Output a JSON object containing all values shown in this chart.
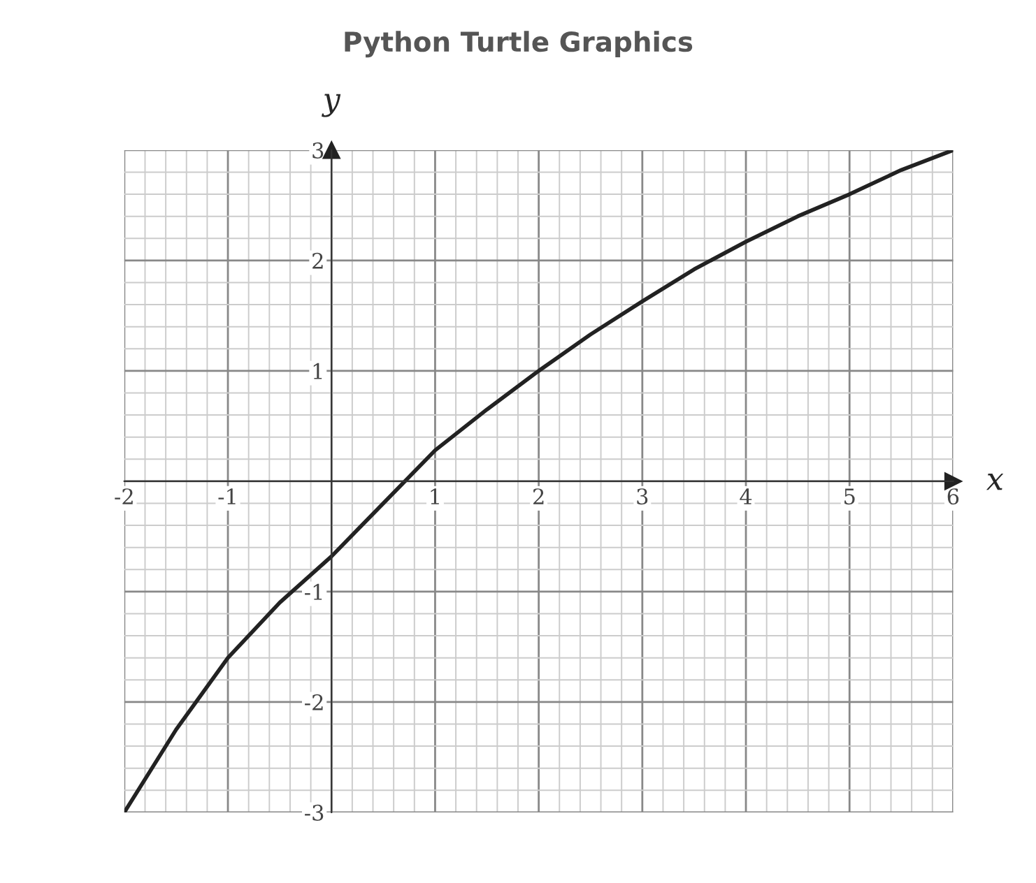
{
  "chart_data": {
    "type": "line",
    "title": "Python Turtle Graphics",
    "xlabel": "x",
    "ylabel": "y",
    "x": [
      -2,
      -1.5,
      -1,
      -0.5,
      0,
      0.5,
      1,
      1.5,
      2,
      2.5,
      3,
      3.5,
      4,
      4.5,
      5,
      5.5,
      6
    ],
    "series": [
      {
        "color": "#222222",
        "values": [
          -3,
          -2.25,
          -1.6,
          -1.1,
          -0.68,
          -0.2,
          0.28,
          0.65,
          1.0,
          1.33,
          1.63,
          1.92,
          2.17,
          2.4,
          2.6,
          2.82,
          3
        ]
      }
    ],
    "xlim": [
      -2,
      6
    ],
    "ylim": [
      -3,
      3
    ],
    "xticks": [
      -2,
      -1,
      1,
      2,
      3,
      4,
      5,
      6
    ],
    "yticks": [
      -3,
      -2,
      -1,
      1,
      2,
      3
    ],
    "grid": true,
    "legend": false,
    "marker": "none",
    "line_style": "solid"
  }
}
